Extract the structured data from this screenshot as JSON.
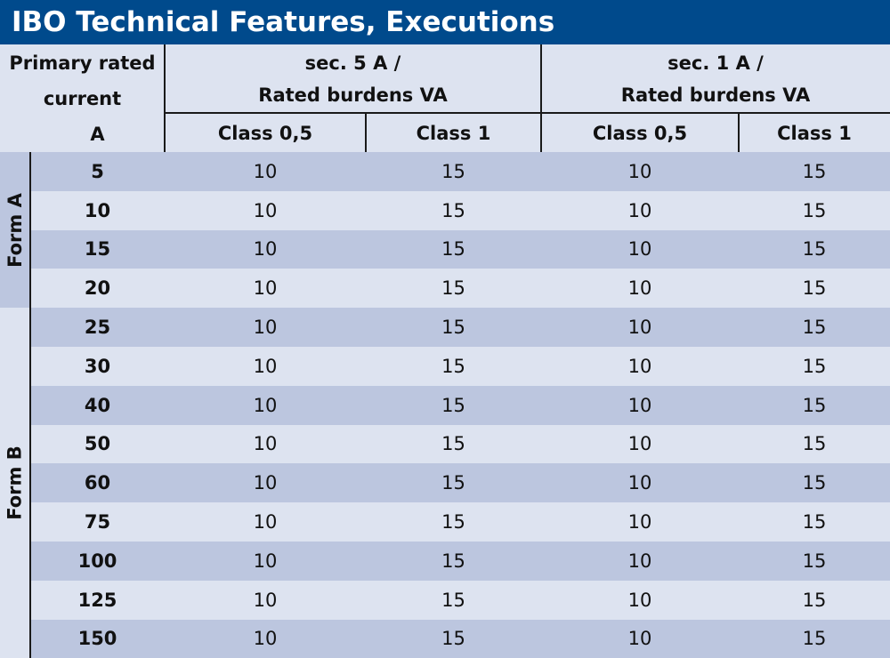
{
  "title": "IBO Technical Features, Executions",
  "header": {
    "primary_line1": "Primary rated",
    "primary_line2": "current",
    "primary_unit": "A",
    "sec5_line1": "sec. 5 A /",
    "sec5_line2": "Rated burdens VA",
    "sec1_line1": "sec. 1 A /",
    "sec1_line2": "Rated burdens VA",
    "class05_a": "Class 0,5",
    "class1_a": "Class 1",
    "class05_b": "Class 0,5",
    "class1_b": "Class 1"
  },
  "forms": {
    "form_a": "Form A",
    "form_b": "Form B"
  },
  "rows": [
    {
      "current": "5",
      "s5_c05": "10",
      "s5_c1": "15",
      "s1_c05": "10",
      "s1_c1": "15"
    },
    {
      "current": "10",
      "s5_c05": "10",
      "s5_c1": "15",
      "s1_c05": "10",
      "s1_c1": "15"
    },
    {
      "current": "15",
      "s5_c05": "10",
      "s5_c1": "15",
      "s1_c05": "10",
      "s1_c1": "15"
    },
    {
      "current": "20",
      "s5_c05": "10",
      "s5_c1": "15",
      "s1_c05": "10",
      "s1_c1": "15"
    },
    {
      "current": "25",
      "s5_c05": "10",
      "s5_c1": "15",
      "s1_c05": "10",
      "s1_c1": "15"
    },
    {
      "current": "30",
      "s5_c05": "10",
      "s5_c1": "15",
      "s1_c05": "10",
      "s1_c1": "15"
    },
    {
      "current": "40",
      "s5_c05": "10",
      "s5_c1": "15",
      "s1_c05": "10",
      "s1_c1": "15"
    },
    {
      "current": "50",
      "s5_c05": "10",
      "s5_c1": "15",
      "s1_c05": "10",
      "s1_c1": "15"
    },
    {
      "current": "60",
      "s5_c05": "10",
      "s5_c1": "15",
      "s1_c05": "10",
      "s1_c1": "15"
    },
    {
      "current": "75",
      "s5_c05": "10",
      "s5_c1": "15",
      "s1_c05": "10",
      "s1_c1": "15"
    },
    {
      "current": "100",
      "s5_c05": "10",
      "s5_c1": "15",
      "s1_c05": "10",
      "s1_c1": "15"
    },
    {
      "current": "125",
      "s5_c05": "10",
      "s5_c1": "15",
      "s1_c05": "10",
      "s1_c1": "15"
    },
    {
      "current": "150",
      "s5_c05": "10",
      "s5_c1": "15",
      "s1_c05": "10",
      "s1_c1": "15"
    }
  ],
  "colors": {
    "title_bg": "#004a8c",
    "row_dark": "#bcc6df",
    "row_light": "#dde3f0",
    "form_band": "#bcc6df"
  }
}
